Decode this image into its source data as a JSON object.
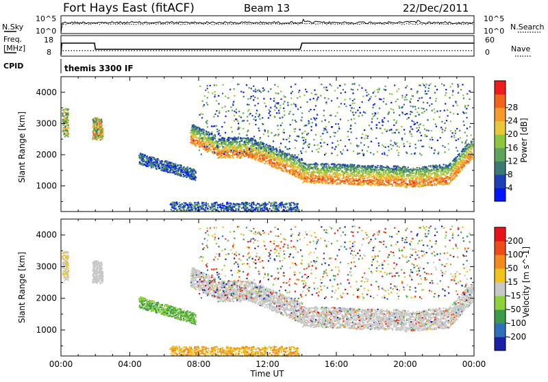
{
  "header": {
    "station": "Fort Hays East (fitACF)",
    "beam": "Beam 13",
    "date": "22/Dec/2011"
  },
  "noise_panel": {
    "left_label": "N.Sky",
    "right_label": "N.Search",
    "left_ticks": [
      "10^5",
      "10^0"
    ],
    "right_ticks": [
      "10^5",
      "10^0"
    ]
  },
  "freq_panel": {
    "left_label_1": "Freq.",
    "left_label_2": "[MHz]",
    "left_ticks": [
      "18",
      "8"
    ],
    "right_label": "Nave",
    "right_ticks": [
      "60",
      "0"
    ]
  },
  "cpid_panel": {
    "label": "CPID",
    "program": "themis 3300 IF"
  },
  "x_axis": {
    "label": "Time UT",
    "ticks": [
      "00:00",
      "04:00",
      "08:00",
      "12:00",
      "16:00",
      "20:00",
      "00:00"
    ]
  },
  "chart_data": [
    {
      "type": "heatmap",
      "title": "",
      "xlabel": "Time UT",
      "ylabel": "Slant Range [km]",
      "x_ticks": [
        "00:00",
        "04:00",
        "08:00",
        "12:00",
        "16:00",
        "20:00",
        "00:00"
      ],
      "ylim": [
        180,
        4500
      ],
      "y_ticks": [
        1000,
        2000,
        3000,
        4000
      ],
      "colorbar": {
        "label": "Power [dB]",
        "ticks": [
          4,
          8,
          12,
          16,
          20,
          24,
          28
        ],
        "colors": [
          "#0016ff",
          "#1f3fb7",
          "#3b7a73",
          "#5ea45a",
          "#8ec63f",
          "#e6c83a",
          "#f59b2c",
          "#f2641c",
          "#ee1c1c"
        ]
      },
      "features": [
        {
          "name": "main_echo_band",
          "range_km_start": 2500,
          "range_km_end": 1200,
          "time_start_h": 7.5,
          "time_end_h": 24
        },
        {
          "name": "early_echo_patch",
          "range_km": 2700,
          "time_h": 2
        }
      ]
    },
    {
      "type": "heatmap",
      "title": "",
      "xlabel": "Time UT",
      "ylabel": "Slant Range [km]",
      "x_ticks": [
        "00:00",
        "04:00",
        "08:00",
        "12:00",
        "16:00",
        "20:00",
        "00:00"
      ],
      "ylim": [
        180,
        4500
      ],
      "y_ticks": [
        1000,
        2000,
        3000,
        4000
      ],
      "colorbar": {
        "label": "Velocity [m s^-1]",
        "ticks": [
          200,
          100,
          50,
          15,
          -15,
          -50,
          -100,
          -200
        ],
        "colors": [
          "#1a1fa8",
          "#2f6fb8",
          "#3d9a4a",
          "#8fd13c",
          "#c8c8c8",
          "#f0c21a",
          "#f28a1e",
          "#ee4a1a",
          "#e8121a"
        ]
      }
    }
  ]
}
